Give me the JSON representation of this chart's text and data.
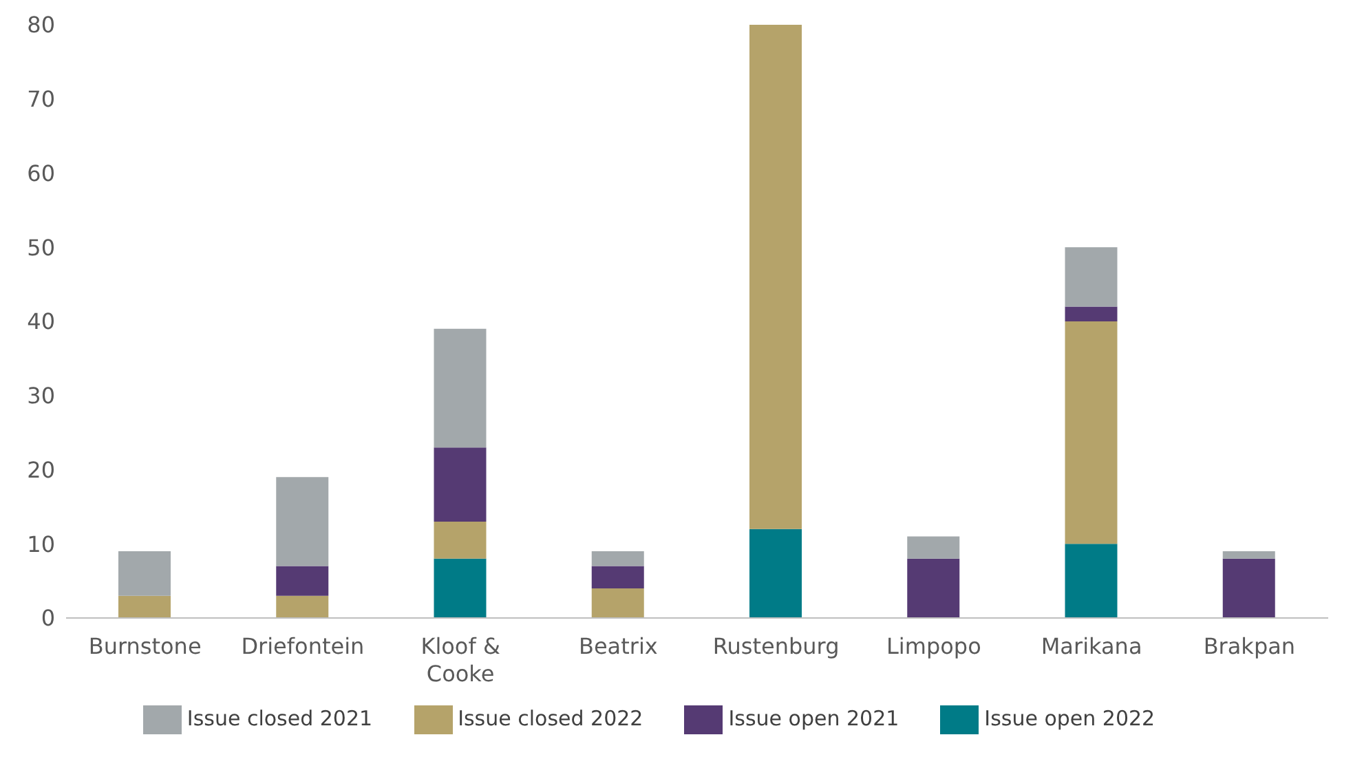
{
  "chart_data": {
    "type": "bar",
    "stacked": true,
    "categories": [
      "Burnstone",
      "Driefontein",
      "Kloof & Cooke",
      "Beatrix",
      "Rustenburg",
      "Limpopo",
      "Marikana",
      "Brakpan"
    ],
    "series": [
      {
        "name": "Issue open 2022",
        "color": "#007b87",
        "values": [
          0,
          0,
          8,
          0,
          12,
          0,
          10,
          0
        ]
      },
      {
        "name": "Issue closed 2022",
        "color": "#b5a36a",
        "values": [
          3,
          3,
          5,
          4,
          68,
          0,
          30,
          0
        ]
      },
      {
        "name": "Issue open 2021",
        "color": "#553a73",
        "values": [
          0,
          4,
          10,
          3,
          0,
          8,
          2,
          8
        ]
      },
      {
        "name": "Issue closed 2021",
        "color": "#a2a8ab",
        "values": [
          6,
          12,
          16,
          2,
          0,
          3,
          8,
          1
        ]
      }
    ],
    "ylim": [
      0,
      80
    ],
    "yticks": [
      0,
      10,
      20,
      30,
      40,
      50,
      60,
      70,
      80
    ],
    "grid": false,
    "legend": "bottom"
  }
}
